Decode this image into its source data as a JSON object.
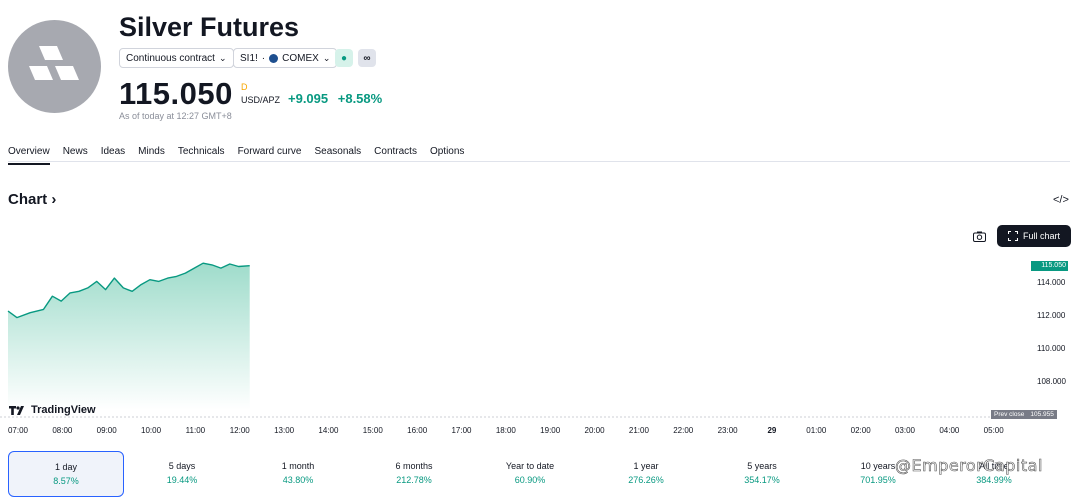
{
  "header": {
    "title": "Silver Futures",
    "contract_label": "Continuous contract",
    "symbol": "SI1!",
    "exchange": "COMEX",
    "price": "115.050",
    "price_superscript": "D",
    "unit": "USD/APZ",
    "change_abs": "+9.095",
    "change_pct": "+8.58%",
    "as_of": "As of today at 12:27 GMT+8",
    "mini_chip_1": "●",
    "mini_chip_2": "∞"
  },
  "tabs": [
    "Overview",
    "News",
    "Ideas",
    "Minds",
    "Technicals",
    "Forward curve",
    "Seasonals",
    "Contracts",
    "Options"
  ],
  "chart": {
    "title": "Chart",
    "title_chevron": "›",
    "full_chart_label": "Full chart",
    "code_icon": "</>",
    "brand": "TradingView",
    "prev_close_label": "Prev close",
    "prev_close_value": "105.955",
    "last_price": "115.050",
    "colors": {
      "line": "#089981",
      "area_top": "#9fdccb",
      "area_bottom": "#ffffff"
    }
  },
  "chart_data": {
    "type": "area",
    "x_ticks": [
      "07:00",
      "08:00",
      "09:00",
      "10:00",
      "11:00",
      "12:00",
      "13:00",
      "14:00",
      "15:00",
      "16:00",
      "17:00",
      "18:00",
      "19:00",
      "20:00",
      "21:00",
      "22:00",
      "23:00",
      "29",
      "01:00",
      "02:00",
      "03:00",
      "04:00",
      "05:00"
    ],
    "y_ticks": [
      "114.000",
      "112.000",
      "110.000",
      "108.000"
    ],
    "ylim": [
      105.9,
      116.0
    ],
    "x_hours": [
      7.0,
      7.2,
      7.5,
      7.8,
      8.0,
      8.2,
      8.4,
      8.6,
      8.8,
      9.0,
      9.2,
      9.4,
      9.6,
      9.8,
      10.0,
      10.2,
      10.4,
      10.6,
      10.8,
      11.0,
      11.2,
      11.4,
      11.6,
      11.8,
      12.0,
      12.2,
      12.45
    ],
    "values": [
      112.3,
      111.9,
      112.2,
      112.4,
      113.2,
      112.9,
      113.4,
      113.5,
      113.7,
      114.1,
      113.6,
      114.3,
      113.7,
      113.5,
      113.9,
      114.2,
      114.1,
      114.3,
      114.4,
      114.6,
      114.9,
      115.2,
      115.1,
      114.9,
      115.15,
      115.0,
      115.05
    ]
  },
  "periods": [
    {
      "label": "1 day",
      "pct": "8.57%"
    },
    {
      "label": "5 days",
      "pct": "19.44%"
    },
    {
      "label": "1 month",
      "pct": "43.80%"
    },
    {
      "label": "6 months",
      "pct": "212.78%"
    },
    {
      "label": "Year to date",
      "pct": "60.90%"
    },
    {
      "label": "1 year",
      "pct": "276.26%"
    },
    {
      "label": "5 years",
      "pct": "354.17%"
    },
    {
      "label": "10 years",
      "pct": "701.95%"
    },
    {
      "label": "All time",
      "pct": "384.99%"
    }
  ],
  "watermark": "@EmperorCapital"
}
